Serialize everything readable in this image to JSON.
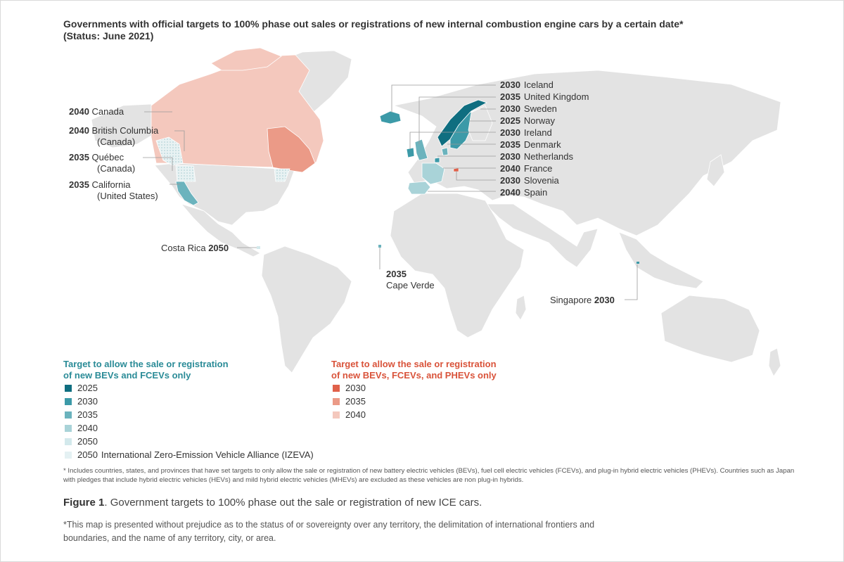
{
  "title": {
    "line1": "Governments with official targets to 100% phase out sales or registrations of new internal combustion engine cars by a certain date*",
    "line2": "(Status: June 2021)"
  },
  "left_labels": {
    "canada": {
      "year": "2040",
      "name": "Canada"
    },
    "bc": {
      "year": "2040",
      "name": "British Columbia",
      "sub": "(Canada)"
    },
    "quebec": {
      "year": "2035",
      "name": "Québec",
      "sub": "(Canada)"
    },
    "california": {
      "year": "2035",
      "name": "California",
      "sub": "(United States)"
    },
    "costa_rica": {
      "name": "Costa Rica",
      "year": "2050"
    }
  },
  "right_labels": [
    {
      "year": "2030",
      "name": "Iceland"
    },
    {
      "year": "2035",
      "name": "United Kingdom"
    },
    {
      "year": "2030",
      "name": "Sweden"
    },
    {
      "year": "2025",
      "name": "Norway"
    },
    {
      "year": "2030",
      "name": "Ireland"
    },
    {
      "year": "2035",
      "name": "Denmark"
    },
    {
      "year": "2030",
      "name": "Netherlands"
    },
    {
      "year": "2040",
      "name": "France"
    },
    {
      "year": "2030",
      "name": "Slovenia"
    },
    {
      "year": "2040",
      "name": "Spain"
    }
  ],
  "cape_verde": {
    "year": "2035",
    "name": "Cape Verde"
  },
  "singapore": {
    "name": "Singapore",
    "year": "2030"
  },
  "legend_bev": {
    "title_line1": "Target to allow the sale or registration",
    "title_line2": "of new BEVs and FCEVs only",
    "items": [
      {
        "label": "2025",
        "color": "#0f6e80"
      },
      {
        "label": "2030",
        "color": "#3c9aa8"
      },
      {
        "label": "2035",
        "color": "#6bb3bd"
      },
      {
        "label": "2040",
        "color": "#a9d3d8"
      },
      {
        "label": "2050",
        "color": "#d3e9ec"
      },
      {
        "label": "2050",
        "extra": "International Zero-Emission Vehicle Alliance (IZEVA)",
        "color": "#e4f1f3"
      }
    ]
  },
  "legend_phev": {
    "title_line1": "Target to allow the sale or registration",
    "title_line2": "of new BEVs, FCEVs, and PHEVs only",
    "items": [
      {
        "label": "2030",
        "color": "#e0614a"
      },
      {
        "label": "2035",
        "color": "#eb9a87"
      },
      {
        "label": "2040",
        "color": "#f4c8bd"
      }
    ]
  },
  "colors": {
    "bev_title": "#2a8b97",
    "phev_title": "#d9533a",
    "land": "#e3e3e3",
    "leader": "#9a9a9a"
  },
  "footnote": "* Includes countries, states, and provinces that have set targets to only allow the sale or registration of new battery electric vehicles (BEVs), fuel cell electric vehicles (FCEVs), and plug-in hybrid electric vehicles (PHEVs). Countries such as Japan with pledges that include hybrid electric vehicles (HEVs) and mild hybrid electric vehicles (MHEVs) are excluded as these vehicles are non plug-in hybrids.",
  "figure_caption": {
    "label": "Figure 1",
    "text": ". Government targets to 100% phase out the sale or registration of new ICE cars."
  },
  "disclaimer": "*This map is presented without prejudice as to the status of or sovereignty over any territory, the delimitation of international frontiers and boundaries, and the name of any territory, city, or area."
}
